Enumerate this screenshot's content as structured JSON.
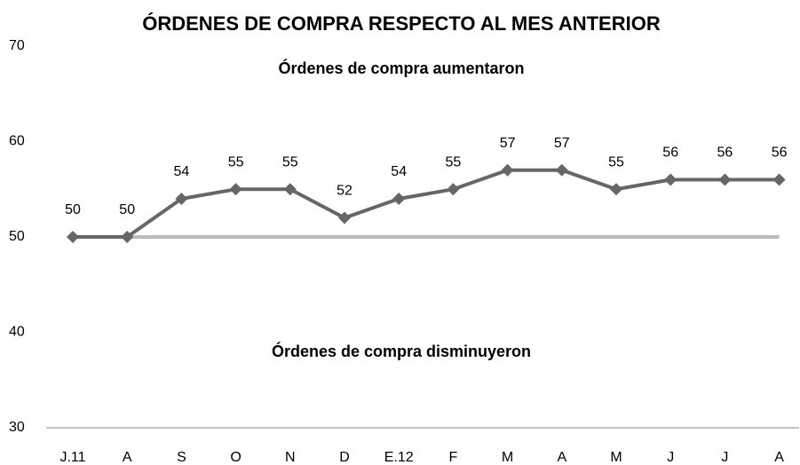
{
  "chart_data": {
    "type": "line",
    "title": "ÓRDENES DE COMPRA RESPECTO AL MES ANTERIOR",
    "annotations": [
      "Órdenes de compra aumentaron",
      "Órdenes de compra disminuyeron"
    ],
    "categories": [
      "J.11",
      "A",
      "S",
      "O",
      "N",
      "D",
      "E.12",
      "F",
      "M",
      "A",
      "M",
      "J",
      "J",
      "A"
    ],
    "values": [
      50,
      50,
      54,
      55,
      55,
      52,
      54,
      55,
      57,
      57,
      55,
      56,
      56,
      56
    ],
    "color": "#666666",
    "threshold": 50,
    "threshold_color": "#bbbbbb",
    "ylim": [
      30,
      70
    ],
    "yticks": [
      30,
      40,
      50,
      60,
      70
    ],
    "grid": false
  }
}
